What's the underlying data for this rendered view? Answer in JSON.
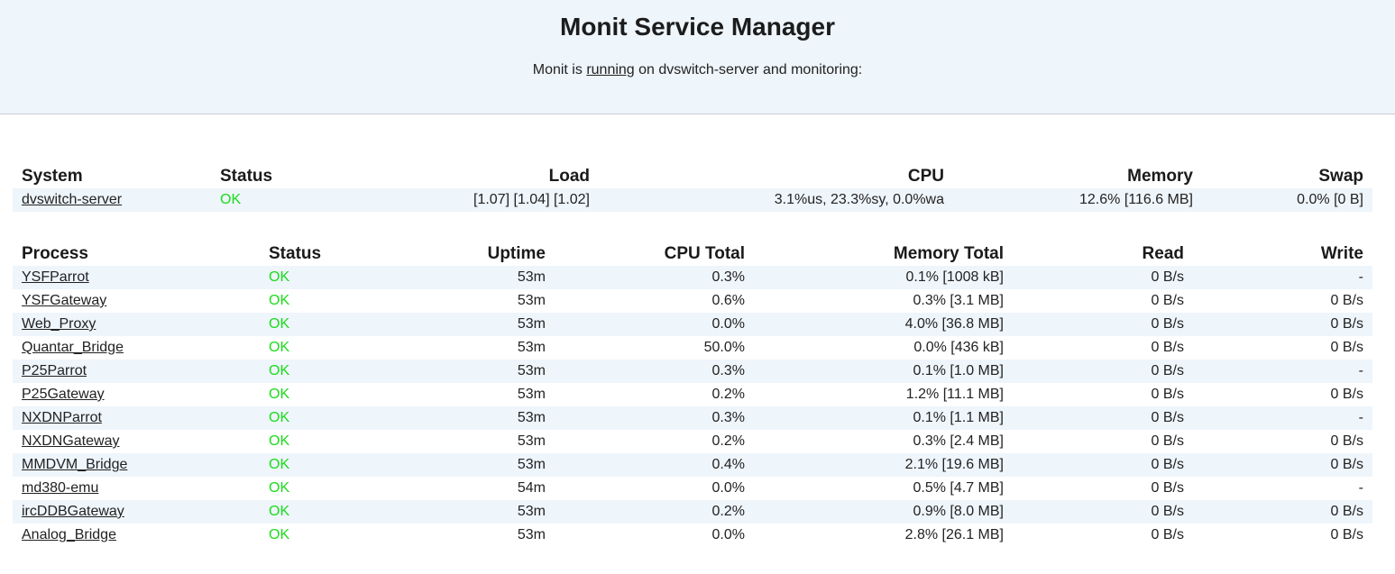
{
  "header": {
    "title": "Monit Service Manager",
    "subtitle_prefix": "Monit is ",
    "subtitle_link": "running",
    "subtitle_suffix": " on dvswitch-server and monitoring:"
  },
  "colors": {
    "header_bg": "#eef5fb",
    "stripe_bg": "#eef5fb",
    "status_ok": "#1adc1a"
  },
  "system": {
    "headers": [
      "System",
      "Status",
      "Load",
      "CPU",
      "Memory",
      "Swap"
    ],
    "rows": [
      {
        "name": "dvswitch-server",
        "status": "OK",
        "load": "[1.07] [1.04] [1.02]",
        "cpu": "3.1%us, 23.3%sy, 0.0%wa",
        "memory": "12.6% [116.6 MB]",
        "swap": "0.0% [0 B]"
      }
    ]
  },
  "process": {
    "headers": [
      "Process",
      "Status",
      "Uptime",
      "CPU Total",
      "Memory Total",
      "Read",
      "Write"
    ],
    "rows": [
      {
        "name": "YSFParrot",
        "status": "OK",
        "uptime": "53m",
        "cpu": "0.3%",
        "memory": "0.1% [1008 kB]",
        "read": "0 B/s",
        "write": "-"
      },
      {
        "name": "YSFGateway",
        "status": "OK",
        "uptime": "53m",
        "cpu": "0.6%",
        "memory": "0.3% [3.1 MB]",
        "read": "0 B/s",
        "write": "0 B/s"
      },
      {
        "name": "Web_Proxy",
        "status": "OK",
        "uptime": "53m",
        "cpu": "0.0%",
        "memory": "4.0% [36.8 MB]",
        "read": "0 B/s",
        "write": "0 B/s"
      },
      {
        "name": "Quantar_Bridge",
        "status": "OK",
        "uptime": "53m",
        "cpu": "50.0%",
        "memory": "0.0% [436 kB]",
        "read": "0 B/s",
        "write": "0 B/s"
      },
      {
        "name": "P25Parrot",
        "status": "OK",
        "uptime": "53m",
        "cpu": "0.3%",
        "memory": "0.1% [1.0 MB]",
        "read": "0 B/s",
        "write": "-"
      },
      {
        "name": "P25Gateway",
        "status": "OK",
        "uptime": "53m",
        "cpu": "0.2%",
        "memory": "1.2% [11.1 MB]",
        "read": "0 B/s",
        "write": "0 B/s"
      },
      {
        "name": "NXDNParrot",
        "status": "OK",
        "uptime": "53m",
        "cpu": "0.3%",
        "memory": "0.1% [1.1 MB]",
        "read": "0 B/s",
        "write": "-"
      },
      {
        "name": "NXDNGateway",
        "status": "OK",
        "uptime": "53m",
        "cpu": "0.2%",
        "memory": "0.3% [2.4 MB]",
        "read": "0 B/s",
        "write": "0 B/s"
      },
      {
        "name": "MMDVM_Bridge",
        "status": "OK",
        "uptime": "53m",
        "cpu": "0.4%",
        "memory": "2.1% [19.6 MB]",
        "read": "0 B/s",
        "write": "0 B/s"
      },
      {
        "name": "md380-emu",
        "status": "OK",
        "uptime": "54m",
        "cpu": "0.0%",
        "memory": "0.5% [4.7 MB]",
        "read": "0 B/s",
        "write": "-"
      },
      {
        "name": "ircDDBGateway",
        "status": "OK",
        "uptime": "53m",
        "cpu": "0.2%",
        "memory": "0.9% [8.0 MB]",
        "read": "0 B/s",
        "write": "0 B/s"
      },
      {
        "name": "Analog_Bridge",
        "status": "OK",
        "uptime": "53m",
        "cpu": "0.0%",
        "memory": "2.8% [26.1 MB]",
        "read": "0 B/s",
        "write": "0 B/s"
      }
    ]
  }
}
